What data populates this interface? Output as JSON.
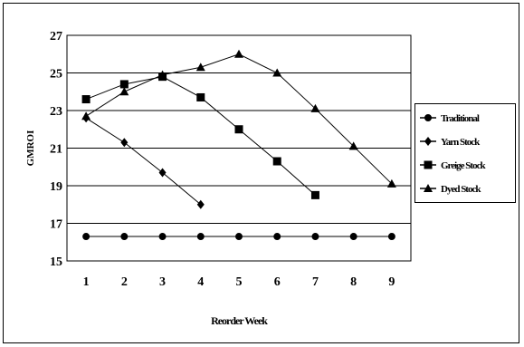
{
  "chart_data": {
    "type": "line",
    "title": "",
    "xlabel": "Reorder Week",
    "ylabel": "GMROI",
    "x": [
      1,
      2,
      3,
      4,
      5,
      6,
      7,
      8,
      9
    ],
    "ylim": [
      15,
      27
    ],
    "yticks": [
      15,
      17,
      19,
      21,
      23,
      25,
      27
    ],
    "grid": "horizontal",
    "legend_position": "right",
    "series": [
      {
        "name": "Traditional",
        "marker": "circle",
        "x": [
          1,
          2,
          3,
          4,
          5,
          6,
          7,
          8,
          9
        ],
        "values": [
          16.3,
          16.3,
          16.3,
          16.3,
          16.3,
          16.3,
          16.3,
          16.3,
          16.3
        ]
      },
      {
        "name": "Yarn Stock",
        "marker": "diamond",
        "x": [
          1,
          2,
          3,
          4
        ],
        "values": [
          22.6,
          21.3,
          19.7,
          18.0
        ]
      },
      {
        "name": "Greige Stock",
        "marker": "square",
        "x": [
          1,
          2,
          3,
          4,
          5,
          6,
          7
        ],
        "values": [
          23.6,
          24.4,
          24.8,
          23.7,
          22.0,
          20.3,
          18.5
        ]
      },
      {
        "name": "Dyed Stock",
        "marker": "triangle",
        "x": [
          1,
          2,
          3,
          4,
          5,
          6,
          7,
          8,
          9
        ],
        "values": [
          22.7,
          24.0,
          24.9,
          25.3,
          26.0,
          25.0,
          23.1,
          21.1,
          19.1
        ]
      }
    ]
  }
}
